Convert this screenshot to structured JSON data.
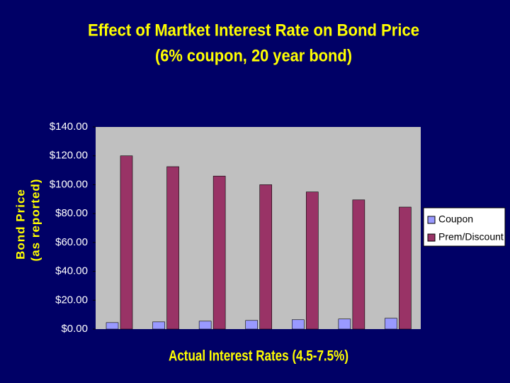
{
  "chart_data": {
    "type": "bar",
    "title": "Effect of Martket Interest Rate on Bond Price",
    "subtitle": "(6% coupon, 20 year bond)",
    "ylabel": [
      "Bond Price",
      "(as reported)"
    ],
    "xlabel": "Actual Interest Rates (4.5-7.5%)",
    "categories": [
      null,
      null,
      null,
      null,
      null,
      null,
      null
    ],
    "series": [
      {
        "name": "Coupon",
        "color": "#9999ff",
        "values": [
          4.5,
          5,
          5.5,
          6,
          6.5,
          7,
          7.5
        ]
      },
      {
        "name": "Prem/Discount",
        "color": "#993366",
        "values": [
          120,
          112.5,
          106,
          100,
          95,
          89.5,
          84.5
        ]
      }
    ],
    "ylim": [
      0,
      140
    ],
    "yticks": [
      {
        "value": 0,
        "label": "$0.00"
      },
      {
        "value": 20,
        "label": "$20.00"
      },
      {
        "value": 40,
        "label": "$40.00"
      },
      {
        "value": 60,
        "label": "$60.00"
      },
      {
        "value": 80,
        "label": "$80.00"
      },
      {
        "value": 100,
        "label": "$100.00"
      },
      {
        "value": 120,
        "label": "$120.00"
      },
      {
        "value": 140,
        "label": "$140.00"
      }
    ],
    "grid": false,
    "legend": "right"
  }
}
